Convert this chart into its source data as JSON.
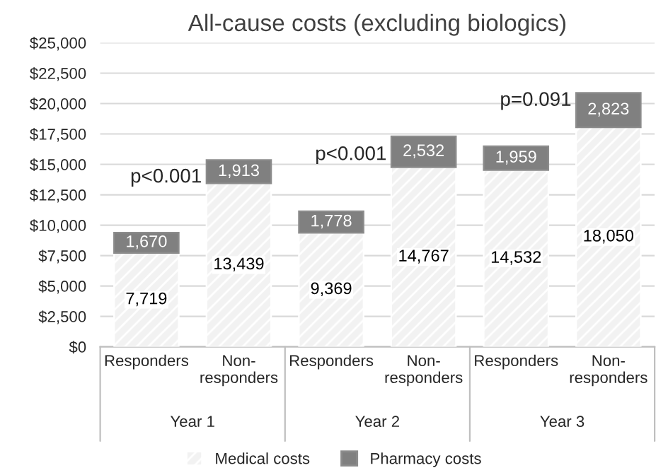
{
  "chart_data": {
    "type": "bar",
    "title": "All-cause costs (excluding biologics)",
    "categories": [
      "Responders",
      "Non-responders",
      "Responders",
      "Non-responders",
      "Responders",
      "Non-responders"
    ],
    "series": [
      {
        "name": "Medical costs",
        "color": "#f2f2f2",
        "values": [
          7719,
          13439,
          9369,
          14767,
          14532,
          18050
        ],
        "value_labels": [
          "7,719",
          "13,439",
          "9,369",
          "14,767",
          "14,532",
          "18,050"
        ]
      },
      {
        "name": "Pharmacy costs",
        "color": "#808080",
        "values": [
          1670,
          1913,
          1778,
          2532,
          1959,
          2823
        ],
        "value_labels": [
          "1,670",
          "1,913",
          "1,778",
          "2,532",
          "1,959",
          "2,823"
        ]
      }
    ],
    "stacked": true,
    "ylim": [
      0,
      25000
    ],
    "yticks": [
      {
        "value": 0,
        "label": "$0"
      },
      {
        "value": 2500,
        "label": "$2,500"
      },
      {
        "value": 5000,
        "label": "$5,000"
      },
      {
        "value": 7500,
        "label": "$7,500"
      },
      {
        "value": 10000,
        "label": "$10,000"
      },
      {
        "value": 12500,
        "label": "$12,500"
      },
      {
        "value": 15000,
        "label": "$15,000"
      },
      {
        "value": 17500,
        "label": "$17,500"
      },
      {
        "value": 20000,
        "label": "$20,000"
      },
      {
        "value": 22500,
        "label": "$22,500"
      },
      {
        "value": 25000,
        "label": "$25,000"
      }
    ],
    "grid": "y",
    "legend": "bottom",
    "annotations": [
      "p<0.001",
      "p<0.001",
      "p=0.091",
      "Year 1",
      "Year 2",
      "Year 3"
    ]
  }
}
